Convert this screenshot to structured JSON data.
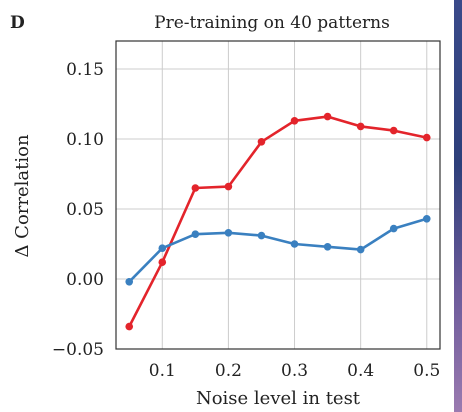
{
  "panel_letter": "D",
  "colors": {
    "red": "#e3242b",
    "blue": "#3a80c0",
    "grid": "#cccccc",
    "frame": "#333333"
  },
  "chart_data": {
    "type": "line",
    "title": "Pre-training on 40 patterns",
    "xlabel": "Noise level in test",
    "ylabel": "Δ Correlation",
    "xlim": [
      0.03,
      0.52
    ],
    "ylim": [
      -0.05,
      0.17
    ],
    "x_ticks": [
      0.1,
      0.2,
      0.3,
      0.4,
      0.5
    ],
    "x_tick_labels": [
      "0.1",
      "0.2",
      "0.3",
      "0.4",
      "0.5"
    ],
    "y_ticks": [
      -0.05,
      0.0,
      0.05,
      0.1,
      0.15
    ],
    "y_tick_labels": [
      "−0.05",
      "0.00",
      "0.05",
      "0.10",
      "0.15"
    ],
    "grid": true,
    "x": [
      0.05,
      0.1,
      0.15,
      0.2,
      0.25,
      0.3,
      0.35,
      0.4,
      0.45,
      0.5
    ],
    "series": [
      {
        "color": "red",
        "values": [
          -0.034,
          0.012,
          0.065,
          0.066,
          0.098,
          0.113,
          0.116,
          0.109,
          0.106,
          0.101
        ]
      },
      {
        "color": "blue",
        "values": [
          -0.002,
          0.022,
          0.032,
          0.033,
          0.031,
          0.025,
          0.023,
          0.021,
          0.036,
          0.043
        ]
      }
    ]
  }
}
